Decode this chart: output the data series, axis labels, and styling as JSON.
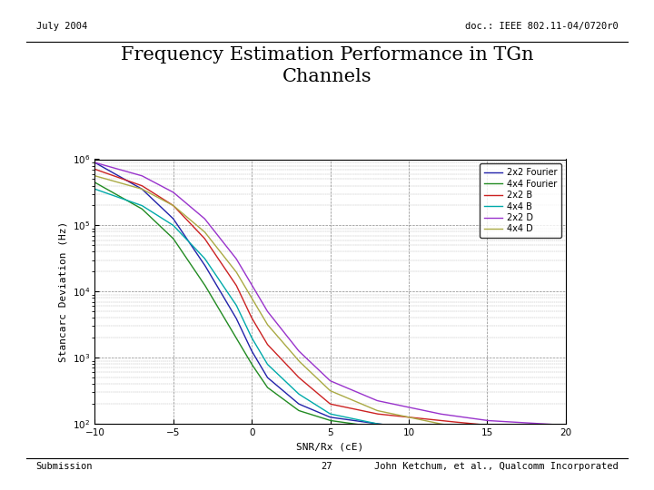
{
  "title_line1": "Frequency Estimation Performance in TGn",
  "title_line2": "Channels",
  "xlabel": "SNR/Rx (cE)",
  "ylabel": "Stancarc Deviation (Hz)",
  "header_left": "July 2004",
  "header_right": "doc.: IEEE 802.11-04/0720r0",
  "footer_left": "Submission",
  "footer_center": "27",
  "footer_right": "John Ketchum, et al., Qualcomm Incorporated",
  "xlim": [
    -10,
    20
  ],
  "ylim": [
    100,
    1000000
  ],
  "xticks": [
    -10,
    -5,
    0,
    5,
    10,
    15,
    20
  ],
  "colors": [
    "#2222aa",
    "#228B22",
    "#cc2222",
    "#00AAAA",
    "#9933cc",
    "#aaaa44"
  ],
  "labels": [
    "2x2 Fourier",
    "4x4 Fourier",
    "2x2 B",
    "4x4 B",
    "2x2 D",
    "4x4 D"
  ],
  "curve_pts": [
    [
      [
        -10,
        5.95
      ],
      [
        -7,
        5.55
      ],
      [
        -5,
        5.1
      ],
      [
        -3,
        4.4
      ],
      [
        -1,
        3.6
      ],
      [
        0,
        3.1
      ],
      [
        1,
        2.7
      ],
      [
        3,
        2.3
      ],
      [
        5,
        2.1
      ],
      [
        8,
        2.0
      ],
      [
        12,
        1.9
      ],
      [
        15,
        1.85
      ],
      [
        20,
        1.82
      ]
    ],
    [
      [
        -10,
        5.65
      ],
      [
        -7,
        5.25
      ],
      [
        -5,
        4.8
      ],
      [
        -3,
        4.1
      ],
      [
        -1,
        3.3
      ],
      [
        0,
        2.9
      ],
      [
        1,
        2.55
      ],
      [
        3,
        2.2
      ],
      [
        5,
        2.05
      ],
      [
        8,
        1.95
      ],
      [
        12,
        1.85
      ],
      [
        15,
        1.8
      ],
      [
        20,
        1.72
      ]
    ],
    [
      [
        -10,
        5.85
      ],
      [
        -7,
        5.6
      ],
      [
        -5,
        5.3
      ],
      [
        -3,
        4.8
      ],
      [
        -1,
        4.1
      ],
      [
        0,
        3.6
      ],
      [
        1,
        3.2
      ],
      [
        3,
        2.7
      ],
      [
        5,
        2.3
      ],
      [
        8,
        2.15
      ],
      [
        12,
        2.05
      ],
      [
        15,
        1.98
      ],
      [
        20,
        1.92
      ]
    ],
    [
      [
        -10,
        5.55
      ],
      [
        -7,
        5.3
      ],
      [
        -5,
        5.0
      ],
      [
        -3,
        4.5
      ],
      [
        -1,
        3.8
      ],
      [
        0,
        3.3
      ],
      [
        1,
        2.9
      ],
      [
        3,
        2.45
      ],
      [
        5,
        2.15
      ],
      [
        8,
        2.0
      ],
      [
        12,
        1.9
      ],
      [
        15,
        1.83
      ],
      [
        20,
        1.76
      ]
    ],
    [
      [
        -10,
        5.95
      ],
      [
        -7,
        5.75
      ],
      [
        -5,
        5.5
      ],
      [
        -3,
        5.1
      ],
      [
        -1,
        4.5
      ],
      [
        0,
        4.1
      ],
      [
        1,
        3.7
      ],
      [
        3,
        3.1
      ],
      [
        5,
        2.65
      ],
      [
        8,
        2.35
      ],
      [
        12,
        2.15
      ],
      [
        15,
        2.05
      ],
      [
        20,
        1.98
      ]
    ],
    [
      [
        -10,
        5.75
      ],
      [
        -7,
        5.55
      ],
      [
        -5,
        5.3
      ],
      [
        -3,
        4.9
      ],
      [
        -1,
        4.3
      ],
      [
        0,
        3.9
      ],
      [
        1,
        3.5
      ],
      [
        3,
        2.95
      ],
      [
        5,
        2.5
      ],
      [
        8,
        2.2
      ],
      [
        12,
        2.0
      ],
      [
        15,
        1.9
      ],
      [
        20,
        1.82
      ]
    ]
  ]
}
